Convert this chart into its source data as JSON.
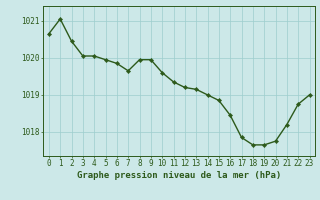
{
  "x": [
    0,
    1,
    2,
    3,
    4,
    5,
    6,
    7,
    8,
    9,
    10,
    11,
    12,
    13,
    14,
    15,
    16,
    17,
    18,
    19,
    20,
    21,
    22,
    23
  ],
  "y": [
    1020.65,
    1021.05,
    1020.45,
    1020.05,
    1020.05,
    1019.95,
    1019.85,
    1019.65,
    1019.95,
    1019.95,
    1019.6,
    1019.35,
    1019.2,
    1019.15,
    1019.0,
    1018.85,
    1018.45,
    1017.85,
    1017.65,
    1017.65,
    1017.75,
    1018.2,
    1018.75,
    1019.0
  ],
  "line_color": "#2d5a1b",
  "marker_color": "#2d5a1b",
  "bg_color": "#cce8e8",
  "grid_color": "#9ecece",
  "axis_color": "#2d5a1b",
  "tick_color": "#2d5a1b",
  "xlabel": "Graphe pression niveau de la mer (hPa)",
  "xlabel_color": "#2d5a1b",
  "ylim": [
    1017.35,
    1021.4
  ],
  "yticks": [
    1018,
    1019,
    1020,
    1021
  ],
  "xticks": [
    0,
    1,
    2,
    3,
    4,
    5,
    6,
    7,
    8,
    9,
    10,
    11,
    12,
    13,
    14,
    15,
    16,
    17,
    18,
    19,
    20,
    21,
    22,
    23
  ],
  "xtick_labels": [
    "0",
    "1",
    "2",
    "3",
    "4",
    "5",
    "6",
    "7",
    "8",
    "9",
    "10",
    "11",
    "12",
    "13",
    "14",
    "15",
    "16",
    "17",
    "18",
    "19",
    "20",
    "21",
    "22",
    "23"
  ],
  "xlabel_fontsize": 6.5,
  "tick_fontsize": 5.5,
  "marker_size": 2.2,
  "line_width": 1.0
}
